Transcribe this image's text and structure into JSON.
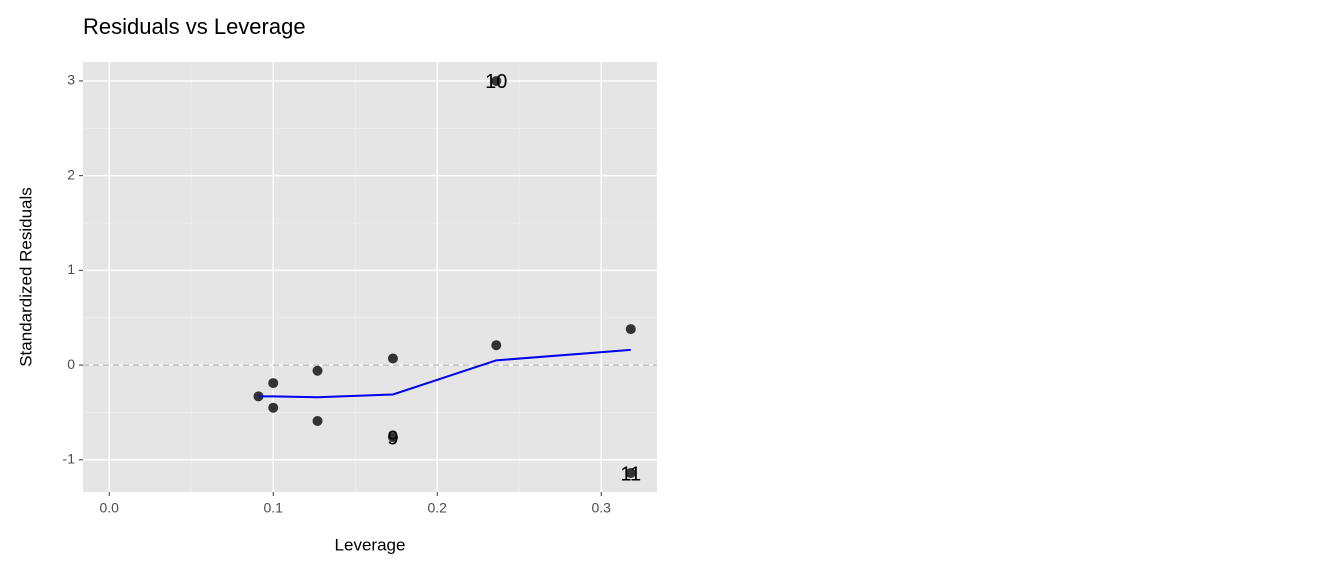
{
  "chart_data": {
    "type": "scatter",
    "title": "Residuals vs Leverage",
    "x_label": "Leverage",
    "y_label": "Standardized Residuals",
    "xlim": [
      -0.016,
      0.334
    ],
    "ylim": [
      -1.34,
      3.2
    ],
    "xticks": [
      {
        "value": 0,
        "label": "0.0"
      },
      0.1,
      0.2,
      0.3
    ],
    "yticks": [
      -1,
      0,
      1,
      2,
      3
    ],
    "grid": true,
    "hline": 0,
    "points": {
      "color": "#333333",
      "x": [
        0.091,
        0.1,
        0.1,
        0.127,
        0.127,
        0.173,
        0.173,
        0.236,
        0.236,
        0.318,
        0.318
      ],
      "y": [
        -0.33,
        -0.19,
        -0.45,
        -0.06,
        -0.59,
        0.07,
        -0.76,
        0.21,
        3.0,
        0.38,
        -1.14
      ]
    },
    "smooth": {
      "color": "#0000ee",
      "x": [
        0.091,
        0.1,
        0.127,
        0.173,
        0.236,
        0.318
      ],
      "y": [
        -0.33,
        -0.33,
        -0.34,
        -0.31,
        0.05,
        0.16
      ]
    },
    "annotations": [
      {
        "text": "10",
        "x": 0.236,
        "y": 3.0
      },
      {
        "text": "9",
        "x": 0.173,
        "y": -0.76
      },
      {
        "text": "11",
        "x": 0.318,
        "y": -1.14
      }
    ]
  }
}
